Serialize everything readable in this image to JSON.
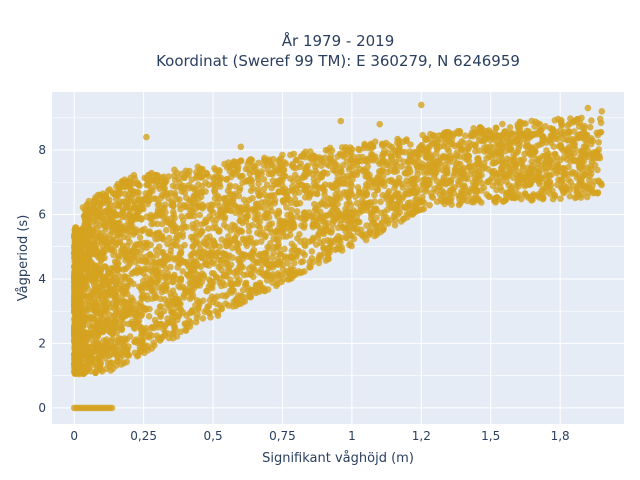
{
  "chart_data": {
    "type": "scatter",
    "title_line1": "År 1979 - 2019",
    "title_line2": "Koordinat (Sweref 99 TM): E 360279, N 6246959",
    "xlabel": "Signifikant våghöjd (m)",
    "ylabel": "Vågperiod (s)",
    "xlim": [
      -0.08,
      1.98
    ],
    "ylim": [
      -0.5,
      9.8
    ],
    "x_ticks": [
      {
        "value": 0,
        "label": "0"
      },
      {
        "value": 0.25,
        "label": "0,25"
      },
      {
        "value": 0.5,
        "label": "0,5"
      },
      {
        "value": 0.75,
        "label": "0,75"
      },
      {
        "value": 1,
        "label": "1"
      },
      {
        "value": 1.25,
        "label": "1,2"
      },
      {
        "value": 1.5,
        "label": "1,5"
      },
      {
        "value": 1.75,
        "label": "1,8"
      }
    ],
    "y_ticks": [
      {
        "value": 0,
        "label": "0"
      },
      {
        "value": 2,
        "label": "2"
      },
      {
        "value": 4,
        "label": "4"
      },
      {
        "value": 6,
        "label": "6"
      },
      {
        "value": 8,
        "label": "8"
      }
    ],
    "grid": true,
    "marker_color": "#d4a21f",
    "plot_bg": "#e5ecf6",
    "point_count_estimate": "dense cloud; upper envelope ~7.2 s at 0.2 m rising to ~9.3 s at 1.9 m; lower envelope ~1.1 s near 0.05 m rising to ~6.5 s at 1.9 m",
    "zero_period_points": {
      "x_range": [
        0.0,
        0.14
      ],
      "y": 0
    },
    "outliers": [
      {
        "x": 0.26,
        "y": 8.4
      },
      {
        "x": 1.25,
        "y": 9.4
      },
      {
        "x": 0.96,
        "y": 8.9
      },
      {
        "x": 1.1,
        "y": 8.8
      },
      {
        "x": 1.85,
        "y": 9.3
      },
      {
        "x": 1.9,
        "y": 9.2
      },
      {
        "x": 0.6,
        "y": 8.1
      },
      {
        "x": 0.82,
        "y": 7.8
      }
    ]
  }
}
